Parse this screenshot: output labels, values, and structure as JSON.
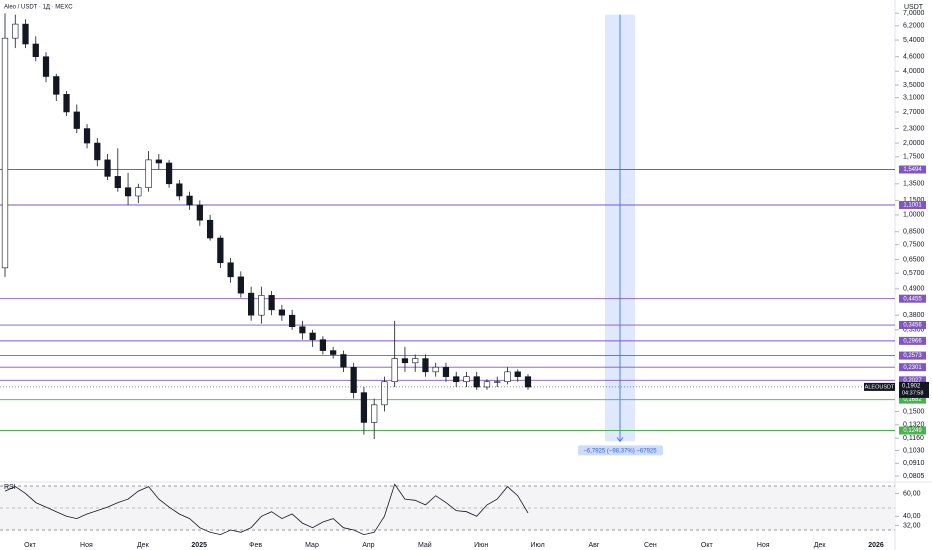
{
  "chart_data": {
    "type": "candlestick",
    "title": "Aleo / USDT · 1Д · MEXC",
    "unit": "USDT",
    "log_scale": true,
    "ylim": [
      0.076,
      7.95
    ],
    "yticks": [
      {
        "value": 7,
        "label": "7,0000"
      },
      {
        "value": 6.2,
        "label": "6,2000"
      },
      {
        "value": 5.4,
        "label": "5,4000"
      },
      {
        "value": 4.6,
        "label": "4,6000"
      },
      {
        "value": 4,
        "label": "4,0000"
      },
      {
        "value": 3.5,
        "label": "3,5000"
      },
      {
        "value": 3.1,
        "label": "3,1000"
      },
      {
        "value": 2.7,
        "label": "2,7000"
      },
      {
        "value": 2.3,
        "label": "2,3000"
      },
      {
        "value": 2,
        "label": "2,0000"
      },
      {
        "value": 1.75,
        "label": "1,7500"
      },
      {
        "value": 1.35,
        "label": "1,3500"
      },
      {
        "value": 1.15,
        "label": "1,1500"
      },
      {
        "value": 1,
        "label": "1,0000"
      },
      {
        "value": 0.85,
        "label": "0,8500"
      },
      {
        "value": 0.75,
        "label": "0,7500"
      },
      {
        "value": 0.65,
        "label": "0,6500"
      },
      {
        "value": 0.57,
        "label": "0,5700"
      },
      {
        "value": 0.49,
        "label": "0,4900"
      },
      {
        "value": 0.38,
        "label": "0,3800"
      },
      {
        "value": 0.33,
        "label": "0,3300"
      },
      {
        "value": 0.15,
        "label": "0,1500"
      },
      {
        "value": 0.132,
        "label": "0,1320"
      },
      {
        "value": 0.116,
        "label": "0,1160"
      },
      {
        "value": 0.103,
        "label": "0,1030"
      },
      {
        "value": 0.091,
        "label": "0,0910"
      },
      {
        "value": 0.0805,
        "label": "0,0805"
      }
    ],
    "x_labels": [
      "Окт",
      "Ноя",
      "Дек",
      "2025",
      "Фев",
      "Мар",
      "Апр",
      "Май",
      "Июн",
      "Июл",
      "Авг",
      "Сен",
      "Окт",
      "Ноя",
      "Дек",
      "2026"
    ],
    "up_color": "#ffffff",
    "down_color": "#131722",
    "open": [
      0.6,
      5.5,
      6.3,
      5.2,
      4.6,
      3.8,
      3.2,
      2.7,
      2.3,
      2.0,
      1.7,
      1.45,
      1.3,
      1.2,
      1.3,
      1.7,
      1.65,
      1.35,
      1.2,
      1.1,
      0.95,
      0.8,
      0.63,
      0.55,
      0.47,
      0.38,
      0.46,
      0.4,
      0.38,
      0.34,
      0.32,
      0.3,
      0.27,
      0.26,
      0.23,
      0.18,
      0.135,
      0.16,
      0.2,
      0.25,
      0.24,
      0.25,
      0.22,
      0.23,
      0.21,
      0.2,
      0.21,
      0.19,
      0.2,
      0.2,
      0.22,
      0.21
    ],
    "high": [
      7.0,
      6.9,
      6.6,
      5.6,
      4.8,
      3.9,
      3.3,
      2.9,
      2.4,
      2.1,
      1.8,
      1.9,
      1.5,
      1.35,
      1.85,
      1.8,
      1.7,
      1.4,
      1.25,
      1.15,
      1.0,
      0.82,
      0.66,
      0.58,
      0.5,
      0.5,
      0.48,
      0.42,
      0.4,
      0.36,
      0.33,
      0.31,
      0.28,
      0.27,
      0.24,
      0.19,
      0.17,
      0.21,
      0.36,
      0.28,
      0.26,
      0.26,
      0.24,
      0.24,
      0.22,
      0.22,
      0.22,
      0.205,
      0.21,
      0.23,
      0.225,
      0.215
    ],
    "low": [
      0.55,
      5.0,
      5.0,
      4.4,
      3.6,
      3.0,
      2.6,
      2.2,
      1.9,
      1.6,
      1.4,
      1.25,
      1.1,
      1.12,
      1.25,
      1.55,
      1.3,
      1.15,
      1.05,
      0.9,
      0.78,
      0.6,
      0.52,
      0.45,
      0.36,
      0.35,
      0.38,
      0.36,
      0.33,
      0.3,
      0.28,
      0.26,
      0.25,
      0.22,
      0.17,
      0.12,
      0.115,
      0.15,
      0.19,
      0.22,
      0.22,
      0.21,
      0.21,
      0.2,
      0.19,
      0.19,
      0.185,
      0.185,
      0.19,
      0.195,
      0.2,
      0.185
    ],
    "close": [
      5.5,
      6.3,
      5.2,
      4.6,
      3.8,
      3.2,
      2.7,
      2.3,
      2.0,
      1.7,
      1.45,
      1.3,
      1.2,
      1.3,
      1.7,
      1.65,
      1.35,
      1.2,
      1.1,
      0.95,
      0.8,
      0.63,
      0.55,
      0.47,
      0.38,
      0.46,
      0.4,
      0.38,
      0.34,
      0.32,
      0.3,
      0.27,
      0.26,
      0.23,
      0.18,
      0.135,
      0.16,
      0.2,
      0.25,
      0.24,
      0.25,
      0.22,
      0.23,
      0.21,
      0.2,
      0.21,
      0.19,
      0.2,
      0.2,
      0.22,
      0.21,
      0.19
    ],
    "levels": [
      {
        "value": 1.5494,
        "label": "1,5494",
        "color": "#7e57c2"
      },
      {
        "value": 1.1001,
        "label": "1,1001",
        "color": "#7e57c2"
      },
      {
        "value": 0.4455,
        "label": "0,4455",
        "color": "#7e57c2"
      },
      {
        "value": 0.3456,
        "label": "0,3456",
        "color": "#7e57c2"
      },
      {
        "value": 0.2966,
        "label": "0,2966",
        "color": "#7e57c2"
      },
      {
        "value": 0.2573,
        "label": "0,2573",
        "color": "#7e57c2"
      },
      {
        "value": 0.2301,
        "label": "0,2301",
        "color": "#7e57c2"
      },
      {
        "value": 0.2027,
        "label": "0,2027",
        "color": "#7e57c2"
      },
      {
        "value": 0.1682,
        "label": "0,1682",
        "color": "#4caf50"
      },
      {
        "value": 0.1249,
        "label": "0,1249",
        "color": "#4caf50"
      }
    ],
    "last_price": {
      "symbol": "ALEOUSDT",
      "value": 0.1902,
      "label": "0,1902",
      "countdown": "04:37:58"
    },
    "measure": {
      "from": 6.905,
      "to": 0.1125,
      "label": "−6,7925 (−98,37%) −67925"
    },
    "rsi": {
      "title": "RSI",
      "ylim": [
        21,
        70
      ],
      "yticks": [
        {
          "value": 60,
          "label": "60,00"
        },
        {
          "value": 40,
          "label": "40,00"
        },
        {
          "value": 32,
          "label": "32,00"
        }
      ],
      "values": [
        62,
        66,
        60,
        52,
        48,
        44,
        40,
        38,
        42,
        45,
        48,
        52,
        55,
        62,
        66,
        55,
        48,
        42,
        38,
        30,
        26,
        24,
        28,
        26,
        30,
        40,
        44,
        38,
        42,
        34,
        30,
        35,
        38,
        30,
        28,
        24,
        26,
        40,
        68,
        55,
        54,
        50,
        58,
        52,
        45,
        44,
        40,
        50,
        55,
        66,
        58,
        43
      ]
    }
  }
}
